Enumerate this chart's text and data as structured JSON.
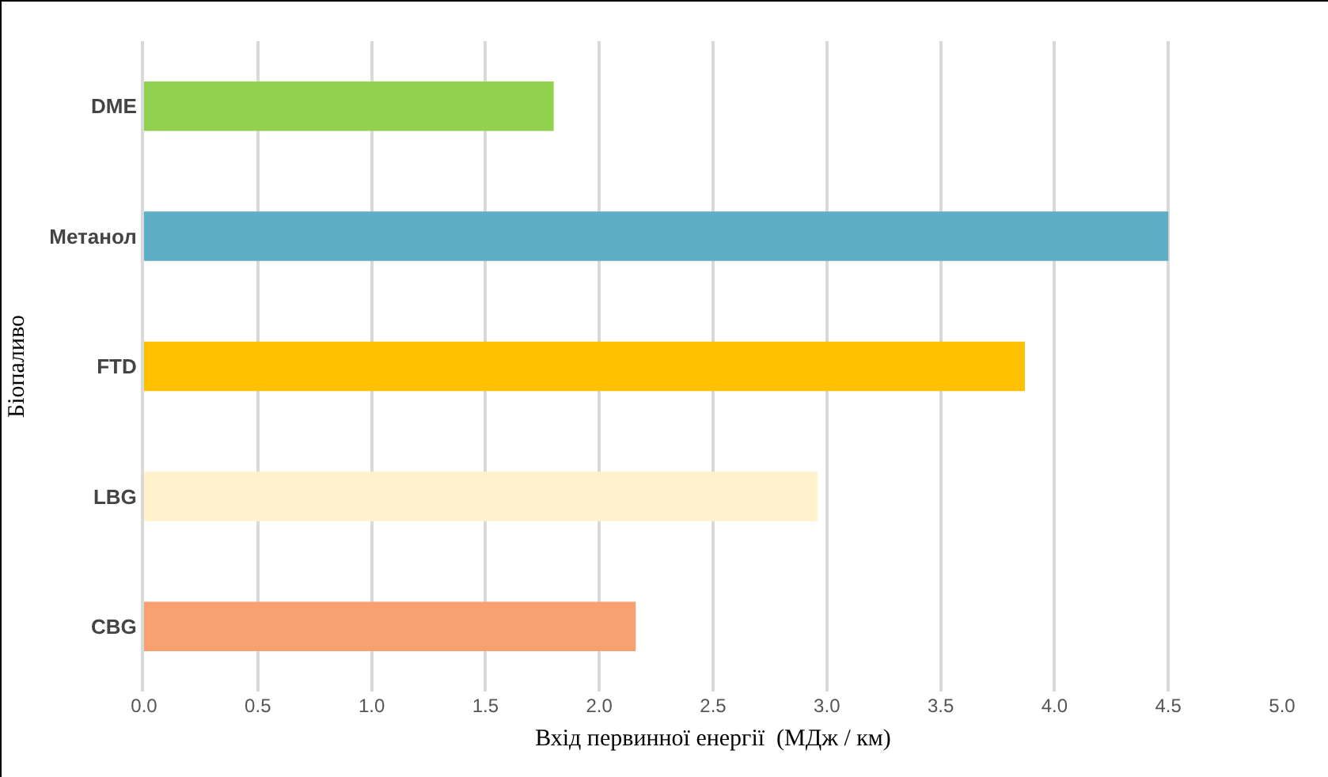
{
  "chart_data": {
    "type": "bar",
    "orientation": "horizontal",
    "xlabel": "Вхід первинної енергії  (МДж / км)",
    "ylabel": "Біопаливо",
    "categories": [
      "DME",
      "Метанол",
      "FTD",
      "LBG",
      "CBG"
    ],
    "values": [
      1.8,
      4.5,
      3.87,
      2.96,
      2.16
    ],
    "colors": [
      "#92d050",
      "#5eaec6",
      "#ffc000",
      "#fff2cc",
      "#f9a070"
    ],
    "xlim": [
      0,
      5
    ],
    "xticks": [
      {
        "value": 0,
        "label": "0.0"
      },
      {
        "value": 0.5,
        "label": "0.5"
      },
      {
        "value": 1,
        "label": "1.0"
      },
      {
        "value": 1.5,
        "label": "1.5"
      },
      {
        "value": 2,
        "label": "2.0"
      },
      {
        "value": 2.5,
        "label": "2.5"
      },
      {
        "value": 3,
        "label": "3.0"
      },
      {
        "value": 3.5,
        "label": "3.5"
      },
      {
        "value": 4,
        "label": "4.0"
      },
      {
        "value": 4.5,
        "label": "4.5"
      },
      {
        "value": 5,
        "label": "5.0"
      }
    ],
    "grid": "x"
  }
}
